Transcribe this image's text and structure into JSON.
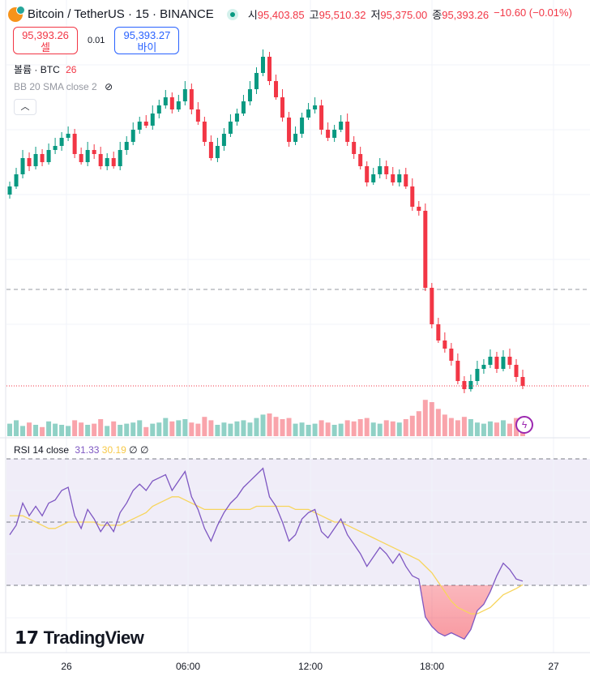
{
  "header": {
    "symbol": "Bitcoin / TetherUS · 15 · BINANCE",
    "ohlc": [
      {
        "k": "시",
        "v": "95,403.85"
      },
      {
        "k": "고",
        "v": "95,510.32"
      },
      {
        "k": "저",
        "v": "95,375.00"
      },
      {
        "k": "종",
        "v": "95,393.26"
      }
    ],
    "change": "−10.60 (−0.01%)"
  },
  "trade": {
    "sell_price": "95,393.26",
    "sell_label": "셀",
    "spread": "0.01",
    "buy_price": "95,393.27",
    "buy_label": "바이"
  },
  "legends": {
    "volume_label": "볼륨 · BTC",
    "volume_value": "26",
    "bb_label": "BB 20 SMA close 2",
    "rsi_label": "RSI 14 close",
    "rsi_value": "31.33",
    "rsi_ma_value": "30.19",
    "rsi_extra1": "∅",
    "rsi_extra2": "∅"
  },
  "brand": "TradingView",
  "colors": {
    "up": "#089981",
    "down": "#f23645",
    "rsi": "#7e57c2",
    "rsi_ma": "#f7d55c"
  },
  "chart_data": {
    "type": "candlestick",
    "x_ticks": [
      "26",
      "06:00",
      "12:00",
      "18:00",
      "27"
    ],
    "price_range": [
      95323,
      97548
    ],
    "closes": [
      96623,
      96698,
      96798,
      96748,
      96823,
      96773,
      96848,
      96873,
      96923,
      96948,
      96823,
      96773,
      96848,
      96823,
      96748,
      96798,
      96748,
      96848,
      96898,
      96973,
      97023,
      96998,
      97073,
      97123,
      97173,
      97098,
      97148,
      97223,
      97098,
      97023,
      96898,
      96798,
      96873,
      96948,
      97023,
      97073,
      97148,
      97223,
      97323,
      97423,
      97273,
      97173,
      97048,
      96898,
      96948,
      97048,
      97098,
      97123,
      96973,
      96923,
      96973,
      97023,
      96898,
      96823,
      96748,
      96648,
      96698,
      96748,
      96698,
      96648,
      96698,
      96623,
      96498,
      96473,
      95998,
      95773,
      95673,
      95623,
      95548,
      95423,
      95373,
      95423,
      95498,
      95523,
      95573,
      95498,
      95573,
      95523,
      95448,
      95393.26
    ],
    "volumes": [
      55,
      70,
      45,
      60,
      50,
      40,
      65,
      55,
      50,
      45,
      70,
      60,
      50,
      55,
      75,
      45,
      65,
      50,
      55,
      60,
      70,
      40,
      55,
      60,
      80,
      65,
      70,
      75,
      60,
      55,
      85,
      70,
      50,
      60,
      55,
      65,
      70,
      60,
      80,
      95,
      100,
      85,
      75,
      80,
      55,
      60,
      50,
      55,
      70,
      60,
      50,
      55,
      70,
      65,
      75,
      80,
      60,
      55,
      70,
      65,
      60,
      75,
      90,
      110,
      160,
      150,
      120,
      95,
      80,
      70,
      85,
      75,
      60,
      55,
      65,
      60,
      70,
      55,
      80,
      26
    ],
    "rsi": [
      46,
      49,
      56,
      52,
      55,
      52,
      56,
      57,
      60,
      61,
      52,
      48,
      54,
      51,
      47,
      50,
      47,
      53,
      56,
      60,
      62,
      60,
      63,
      64,
      65,
      60,
      63,
      66,
      58,
      54,
      48,
      44,
      49,
      53,
      56,
      58,
      61,
      63,
      65,
      67,
      58,
      55,
      50,
      44,
      46,
      51,
      53,
      54,
      47,
      45,
      48,
      51,
      46,
      43,
      40,
      36,
      39,
      42,
      40,
      37,
      40,
      36,
      33,
      32,
      20,
      17,
      15,
      14,
      15,
      14,
      13,
      16,
      22,
      24,
      28,
      33,
      37,
      35,
      32,
      31.33
    ],
    "rsi_ma": [
      52,
      52,
      52,
      51,
      50,
      49,
      48,
      48,
      49,
      50,
      50,
      50,
      50,
      50,
      49,
      49,
      49,
      49,
      50,
      51,
      52,
      53,
      55,
      56,
      57,
      58,
      58,
      57,
      56,
      55,
      54,
      54,
      54,
      54,
      54,
      54,
      54,
      54,
      55,
      55,
      55,
      55,
      55,
      55,
      54,
      54,
      54,
      53,
      52,
      51,
      50,
      50,
      49,
      48,
      47,
      46,
      45,
      44,
      43,
      42,
      41,
      40,
      39,
      38,
      36,
      34,
      31,
      28,
      25,
      23,
      22,
      21,
      21,
      22,
      23,
      25,
      27,
      28,
      29,
      30.19
    ],
    "rsi_bands": [
      70,
      50,
      30
    ]
  }
}
